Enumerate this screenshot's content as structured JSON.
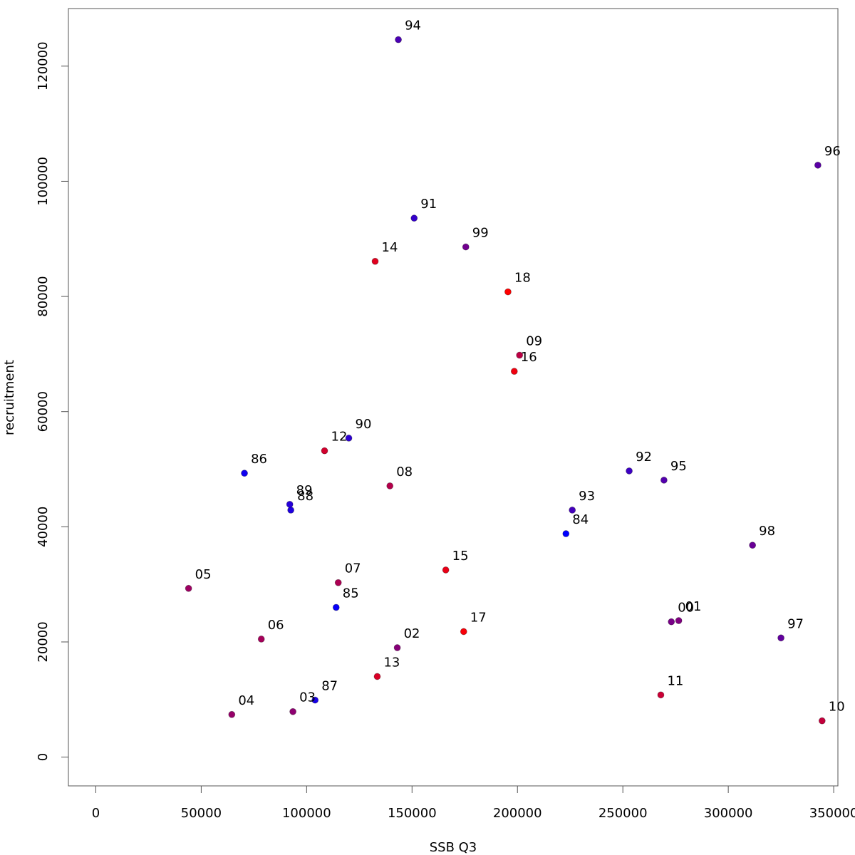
{
  "chart_data": {
    "type": "scatter",
    "title": "",
    "xlabel": "SSB Q3",
    "ylabel": "recruitment",
    "xlim": [
      -13000,
      352000
    ],
    "ylim": [
      -5000,
      130000
    ],
    "xticks": [
      0,
      50000,
      100000,
      150000,
      200000,
      250000,
      300000,
      350000
    ],
    "xtick_labels": [
      "0",
      "50000",
      "100000",
      "150000",
      "200000",
      "250000",
      "300000",
      "350000"
    ],
    "yticks": [
      0,
      20000,
      40000,
      60000,
      80000,
      100000,
      120000
    ],
    "ytick_labels": [
      "0",
      "20000",
      "40000",
      "60000",
      "80000",
      "100000",
      "120000"
    ],
    "grid": false,
    "color_scale": {
      "start": "#0000ff",
      "end": "#ff0000",
      "from_year": 1984,
      "to_year": 2018
    },
    "points": [
      {
        "label": "84",
        "year": 1984,
        "x": 223000,
        "y": 38800
      },
      {
        "label": "85",
        "year": 1985,
        "x": 114000,
        "y": 26000
      },
      {
        "label": "86",
        "year": 1986,
        "x": 70500,
        "y": 49300
      },
      {
        "label": "87",
        "year": 1987,
        "x": 104000,
        "y": 9900
      },
      {
        "label": "88",
        "year": 1988,
        "x": 92500,
        "y": 42900
      },
      {
        "label": "89",
        "year": 1989,
        "x": 92000,
        "y": 43900
      },
      {
        "label": "90",
        "year": 1990,
        "x": 120000,
        "y": 55400
      },
      {
        "label": "91",
        "year": 1991,
        "x": 151000,
        "y": 93600
      },
      {
        "label": "92",
        "year": 1992,
        "x": 253000,
        "y": 49700
      },
      {
        "label": "93",
        "year": 1993,
        "x": 226000,
        "y": 42900
      },
      {
        "label": "94",
        "year": 1994,
        "x": 143500,
        "y": 124600
      },
      {
        "label": "95",
        "year": 1995,
        "x": 269500,
        "y": 48100
      },
      {
        "label": "96",
        "year": 1996,
        "x": 342500,
        "y": 102800
      },
      {
        "label": "97",
        "year": 1997,
        "x": 325000,
        "y": 20700
      },
      {
        "label": "98",
        "year": 1998,
        "x": 311500,
        "y": 36800
      },
      {
        "label": "99",
        "year": 1999,
        "x": 175500,
        "y": 88600
      },
      {
        "label": "00",
        "year": 2000,
        "x": 273000,
        "y": 23500
      },
      {
        "label": "01",
        "year": 2001,
        "x": 276500,
        "y": 23700
      },
      {
        "label": "02",
        "year": 2002,
        "x": 143000,
        "y": 19000
      },
      {
        "label": "03",
        "year": 2003,
        "x": 93500,
        "y": 7900
      },
      {
        "label": "04",
        "year": 2004,
        "x": 64500,
        "y": 7400
      },
      {
        "label": "05",
        "year": 2005,
        "x": 44000,
        "y": 29300
      },
      {
        "label": "06",
        "year": 2006,
        "x": 78500,
        "y": 20500
      },
      {
        "label": "07",
        "year": 2007,
        "x": 115000,
        "y": 30300
      },
      {
        "label": "08",
        "year": 2008,
        "x": 139500,
        "y": 47100
      },
      {
        "label": "09",
        "year": 2009,
        "x": 201000,
        "y": 69800
      },
      {
        "label": "10",
        "year": 2010,
        "x": 344500,
        "y": 6300
      },
      {
        "label": "11",
        "year": 2011,
        "x": 268000,
        "y": 10800
      },
      {
        "label": "12",
        "year": 2012,
        "x": 108500,
        "y": 53200
      },
      {
        "label": "13",
        "year": 2013,
        "x": 133500,
        "y": 14000
      },
      {
        "label": "14",
        "year": 2014,
        "x": 132500,
        "y": 86100
      },
      {
        "label": "15",
        "year": 2015,
        "x": 166000,
        "y": 32500
      },
      {
        "label": "16",
        "year": 2016,
        "x": 198500,
        "y": 67000
      },
      {
        "label": "17",
        "year": 2017,
        "x": 174500,
        "y": 21800
      },
      {
        "label": "18",
        "year": 2018,
        "x": 195500,
        "y": 80800
      }
    ]
  }
}
